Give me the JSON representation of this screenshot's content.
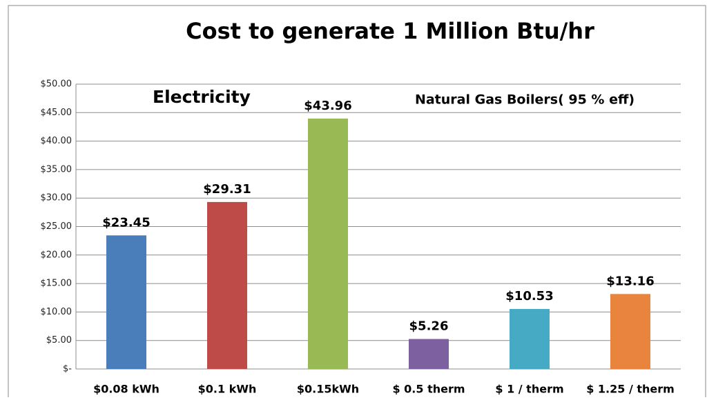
{
  "chart_data": {
    "type": "bar",
    "title": "Cost to generate 1 Million Btu/hr",
    "annotations": [
      "Electricity",
      "Natural Gas Boilers( 95 % eff)"
    ],
    "categories": [
      "$0.08 kWh",
      "$0.1 kWh",
      "$0.15kWh",
      "$ 0.5 therm",
      "$ 1 / therm",
      "$ 1.25 / therm"
    ],
    "values": [
      23.45,
      29.31,
      43.96,
      5.26,
      10.53,
      13.16
    ],
    "value_labels": [
      "$23.45",
      "$29.31",
      "$43.96",
      "$5.26",
      "$10.53",
      "$13.16"
    ],
    "colors": [
      "#4a7ebb",
      "#be4b48",
      "#98b954",
      "#7d60a0",
      "#46aac5",
      "#e8843e"
    ],
    "ylim": [
      0,
      50
    ],
    "yticks": [
      {
        "value": 0,
        "label": "$-"
      },
      {
        "value": 5,
        "label": "$5.00"
      },
      {
        "value": 10,
        "label": "$10.00"
      },
      {
        "value": 15,
        "label": "$15.00"
      },
      {
        "value": 20,
        "label": "$20.00"
      },
      {
        "value": 25,
        "label": "$25.00"
      },
      {
        "value": 30,
        "label": "$30.00"
      },
      {
        "value": 35,
        "label": "$35.00"
      },
      {
        "value": 40,
        "label": "$40.00"
      },
      {
        "value": 45,
        "label": "$45.00"
      },
      {
        "value": 50,
        "label": "$50.00"
      }
    ],
    "grid": true
  }
}
